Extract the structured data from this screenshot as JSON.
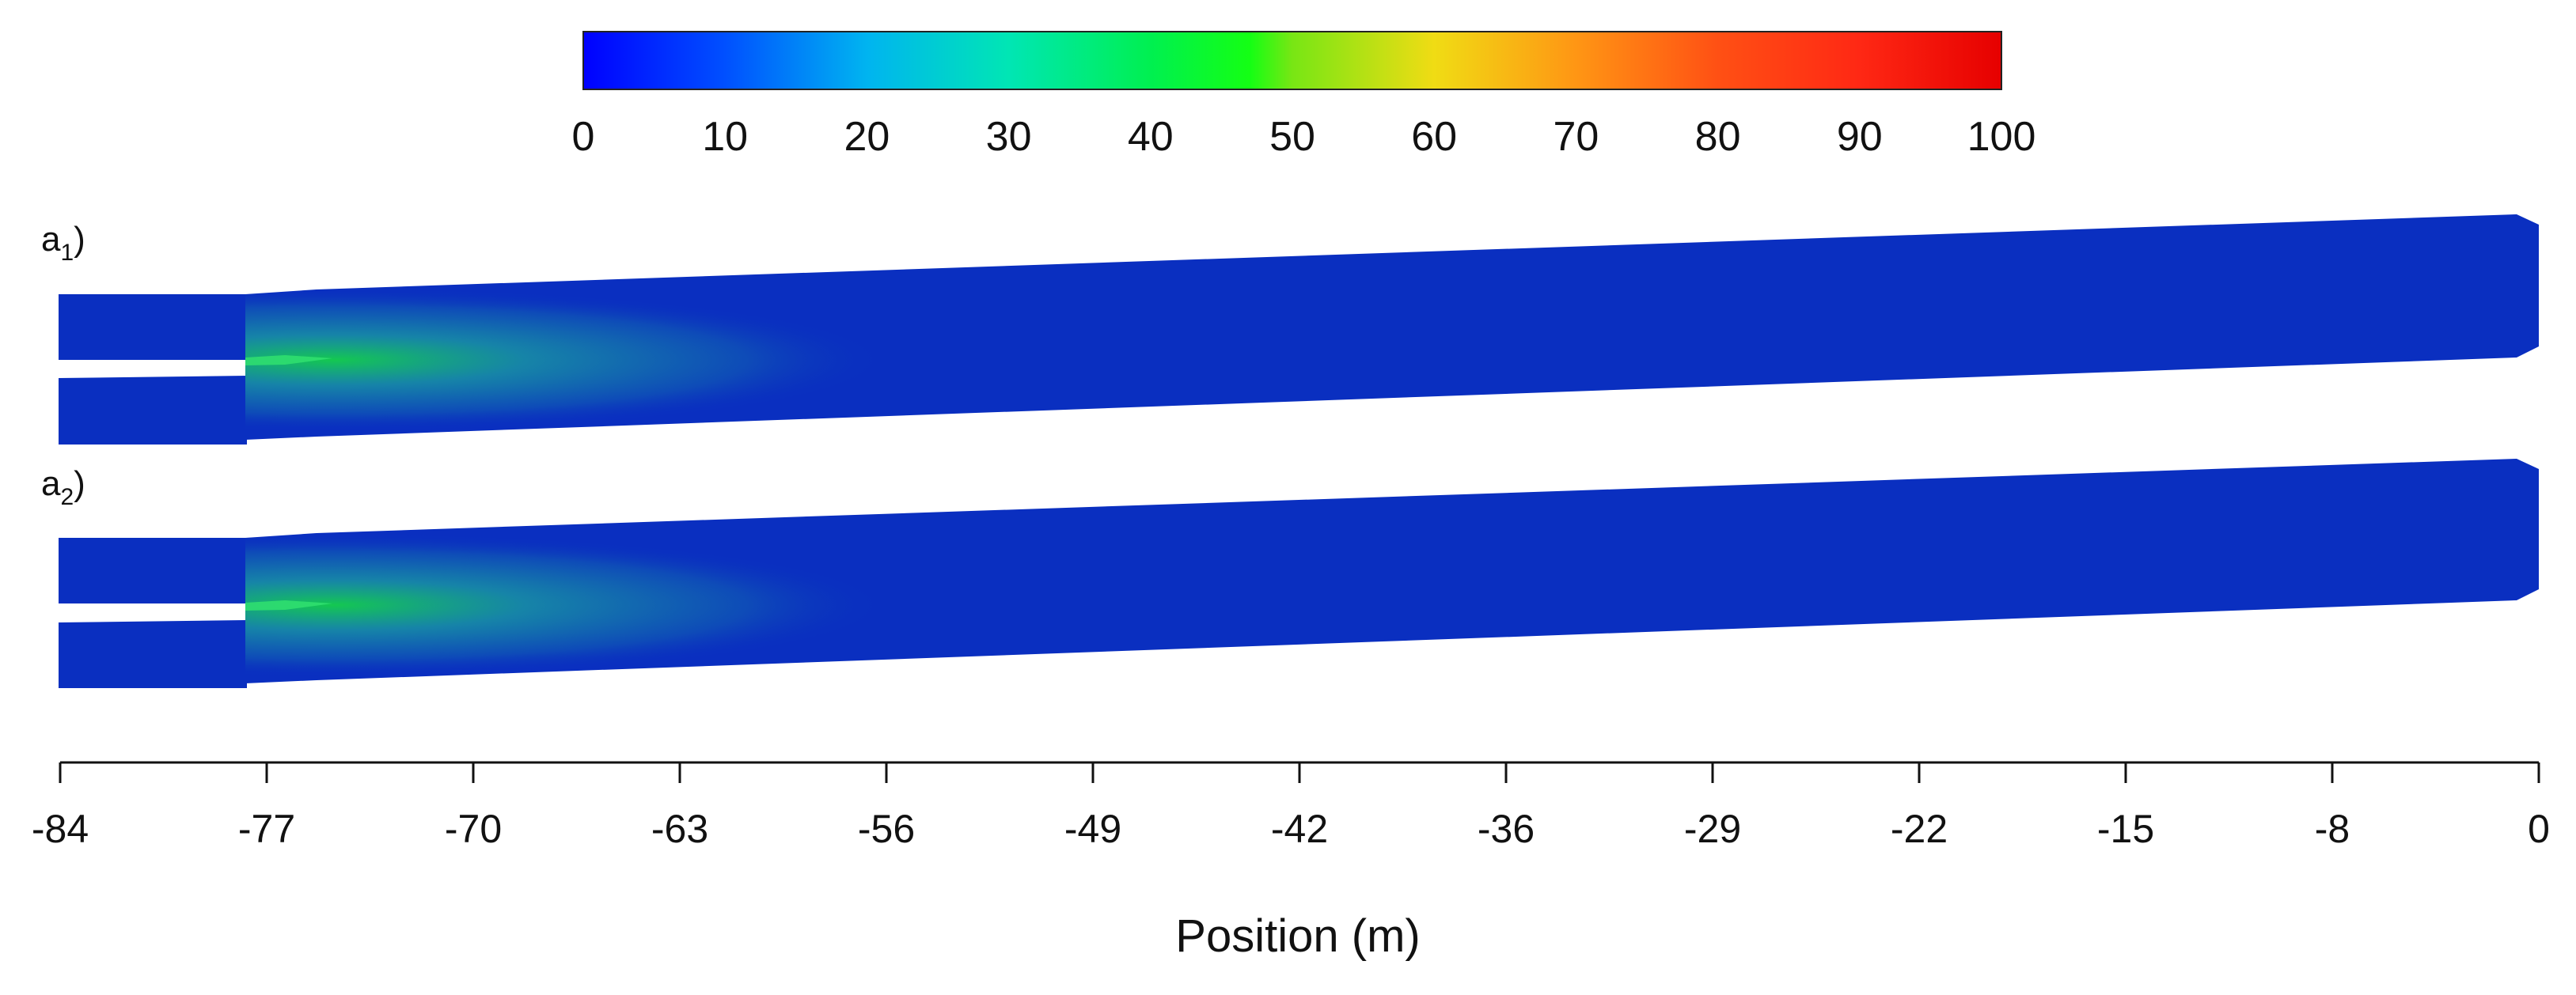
{
  "colorbar": {
    "ticks": [
      "0",
      "10",
      "20",
      "30",
      "40",
      "50",
      "60",
      "70",
      "80",
      "90",
      "100"
    ],
    "stops": [
      {
        "value": 0,
        "color": "#0000ff"
      },
      {
        "value": 10,
        "color": "#0050ff"
      },
      {
        "value": 20,
        "color": "#00b4f0"
      },
      {
        "value": 30,
        "color": "#00e6b4"
      },
      {
        "value": 40,
        "color": "#00f050"
      },
      {
        "value": 47,
        "color": "#14ff14"
      },
      {
        "value": 50,
        "color": "#78e614"
      },
      {
        "value": 60,
        "color": "#f0dc14"
      },
      {
        "value": 70,
        "color": "#ff9614"
      },
      {
        "value": 80,
        "color": "#ff5014"
      },
      {
        "value": 90,
        "color": "#ff2814"
      },
      {
        "value": 100,
        "color": "#e60000"
      }
    ]
  },
  "panels": [
    {
      "label": "a",
      "subscript": "1"
    },
    {
      "label": "a",
      "subscript": "2"
    }
  ],
  "field_colors": {
    "background": "#0a2fc0",
    "plume_core": "#14c850",
    "plume_mid": "#1aa0a0",
    "nozzle": "#30e070"
  },
  "axis": {
    "ticks": [
      "-84",
      "-77",
      "-70",
      "-63",
      "-56",
      "-49",
      "-42",
      "-36",
      "-29",
      "-22",
      "-15",
      "-8",
      "0"
    ],
    "label": "Position (m)"
  }
}
